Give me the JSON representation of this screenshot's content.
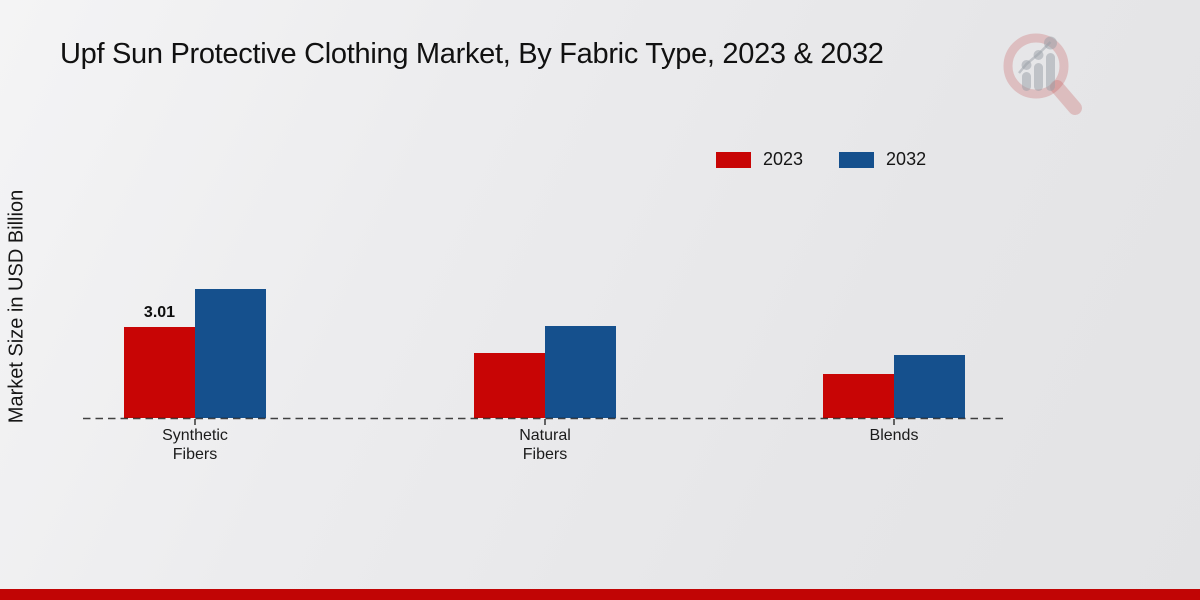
{
  "chart_data": {
    "type": "bar",
    "title": "Upf Sun Protective Clothing Market, By Fabric Type, 2023 & 2032",
    "ylabel": "Market Size in USD Billion",
    "xlabel": "",
    "categories": [
      "Synthetic Fibers",
      "Natural Fibers",
      "Blends"
    ],
    "categories_display": [
      "Synthetic\nFibers",
      "Natural\nFibers",
      "Blends"
    ],
    "series": [
      {
        "name": "2023",
        "color": "#c80505",
        "values": [
          3.01,
          2.15,
          1.45
        ],
        "data_labels": [
          "3.01",
          "",
          ""
        ]
      },
      {
        "name": "2032",
        "color": "#15508d",
        "values": [
          4.28,
          3.04,
          2.09
        ],
        "data_labels": [
          "",
          "",
          ""
        ]
      }
    ],
    "ylim": [
      0,
      5
    ],
    "grid": false,
    "legend_position": "top-right",
    "baseline_style": "dashed",
    "y_axis_ticks_visible": false
  },
  "branding": {
    "logo_icon": "magnifier-bar-chart-watermark",
    "logo_ring_color": "#c24848",
    "logo_bars_color": "#99a0a8",
    "footer_accent_color": "#c10505"
  },
  "colors": {
    "series_2023": "#c80505",
    "series_2032": "#15508d",
    "baseline": "rgba(15,15,15,0.78)",
    "background_light": "#f4f4f5",
    "background_dark": "#e3e3e5"
  }
}
